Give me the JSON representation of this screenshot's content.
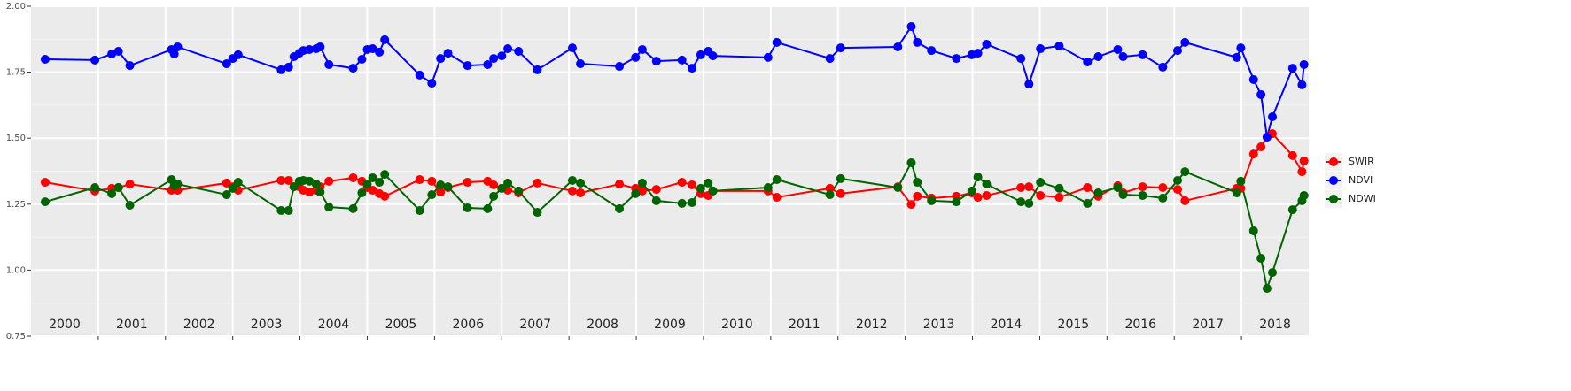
{
  "chart_data": {
    "type": "line",
    "x": [
      2000.21,
      2000.95,
      2001.2,
      2001.3,
      2001.47,
      2002.09,
      2002.13,
      2002.18,
      2002.91,
      2003.0,
      2003.08,
      2003.72,
      2003.83,
      2003.91,
      2003.99,
      2004.05,
      2004.14,
      2004.24,
      2004.3,
      2004.43,
      2004.79,
      2004.92,
      2005.0,
      2005.08,
      2005.18,
      2005.26,
      2005.78,
      2005.96,
      2006.09,
      2006.2,
      2006.49,
      2006.79,
      2006.88,
      2007.0,
      2007.09,
      2007.25,
      2007.53,
      2008.05,
      2008.17,
      2008.75,
      2008.99,
      2009.09,
      2009.3,
      2009.68,
      2009.83,
      2009.96,
      2010.07,
      2010.14,
      2010.96,
      2011.09,
      2011.88,
      2012.04,
      2012.89,
      2013.09,
      2013.18,
      2013.39,
      2013.76,
      2013.99,
      2014.08,
      2014.21,
      2014.72,
      2014.84,
      2015.01,
      2015.29,
      2015.71,
      2015.87,
      2016.16,
      2016.24,
      2016.53,
      2016.83,
      2017.05,
      2017.16,
      2017.93,
      2017.99,
      2018.18,
      2018.29,
      2018.38,
      2018.46,
      2018.76,
      2018.9,
      2018.93
    ],
    "series": [
      {
        "name": "SWIR",
        "color": "#ff0000",
        "values": [
          1.333,
          1.3,
          1.31,
          1.313,
          1.326,
          1.303,
          1.31,
          1.303,
          1.33,
          1.316,
          1.303,
          1.34,
          1.34,
          1.316,
          1.316,
          1.303,
          1.296,
          1.303,
          1.316,
          1.337,
          1.35,
          1.337,
          1.313,
          1.303,
          1.29,
          1.28,
          1.343,
          1.337,
          1.296,
          1.313,
          1.333,
          1.337,
          1.323,
          1.31,
          1.303,
          1.293,
          1.33,
          1.3,
          1.293,
          1.326,
          1.31,
          1.3,
          1.306,
          1.333,
          1.323,
          1.29,
          1.283,
          1.3,
          1.3,
          1.276,
          1.31,
          1.29,
          1.316,
          1.249,
          1.28,
          1.273,
          1.28,
          1.293,
          1.276,
          1.283,
          1.313,
          1.316,
          1.283,
          1.276,
          1.313,
          1.28,
          1.32,
          1.293,
          1.316,
          1.313,
          1.306,
          1.263,
          1.31,
          1.31,
          1.44,
          1.467,
          1.504,
          1.517,
          1.434,
          1.373,
          1.414
        ]
      },
      {
        "name": "NDVI",
        "color": "#0000ff",
        "values": [
          1.799,
          1.796,
          1.819,
          1.829,
          1.775,
          1.836,
          1.819,
          1.846,
          1.782,
          1.802,
          1.816,
          1.759,
          1.769,
          1.809,
          1.822,
          1.832,
          1.836,
          1.839,
          1.846,
          1.779,
          1.765,
          1.799,
          1.836,
          1.839,
          1.826,
          1.873,
          1.739,
          1.708,
          1.802,
          1.822,
          1.775,
          1.779,
          1.802,
          1.812,
          1.839,
          1.829,
          1.759,
          1.842,
          1.782,
          1.772,
          1.806,
          1.836,
          1.792,
          1.796,
          1.765,
          1.816,
          1.829,
          1.812,
          1.806,
          1.863,
          1.802,
          1.842,
          1.846,
          1.923,
          1.863,
          1.832,
          1.802,
          1.816,
          1.822,
          1.856,
          1.802,
          1.705,
          1.839,
          1.849,
          1.789,
          1.809,
          1.836,
          1.809,
          1.816,
          1.769,
          1.832,
          1.863,
          1.806,
          1.842,
          1.722,
          1.665,
          1.504,
          1.581,
          1.765,
          1.702,
          1.779
        ]
      },
      {
        "name": "NDWI",
        "color": "#006400",
        "values": [
          1.259,
          1.313,
          1.29,
          1.313,
          1.246,
          1.343,
          1.32,
          1.326,
          1.286,
          1.31,
          1.333,
          1.226,
          1.226,
          1.316,
          1.337,
          1.34,
          1.337,
          1.326,
          1.296,
          1.239,
          1.233,
          1.293,
          1.326,
          1.35,
          1.333,
          1.363,
          1.226,
          1.286,
          1.323,
          1.316,
          1.236,
          1.233,
          1.28,
          1.31,
          1.33,
          1.3,
          1.219,
          1.34,
          1.33,
          1.233,
          1.29,
          1.33,
          1.263,
          1.253,
          1.256,
          1.31,
          1.33,
          1.3,
          1.313,
          1.343,
          1.286,
          1.347,
          1.313,
          1.407,
          1.333,
          1.263,
          1.259,
          1.3,
          1.353,
          1.326,
          1.259,
          1.253,
          1.333,
          1.31,
          1.253,
          1.293,
          1.313,
          1.286,
          1.283,
          1.273,
          1.34,
          1.373,
          1.293,
          1.337,
          1.149,
          1.045,
          0.931,
          0.991,
          1.229,
          1.263,
          1.283
        ]
      }
    ],
    "xlim": [
      2000,
      2019
    ],
    "xticks": [
      2001,
      2002,
      2003,
      2004,
      2005,
      2006,
      2007,
      2008,
      2009,
      2010,
      2011,
      2012,
      2013,
      2014,
      2015,
      2016,
      2017,
      2018
    ],
    "ylim": [
      0.75,
      2.0
    ],
    "yticks": [
      {
        "value": 0.75,
        "label": "0.75"
      },
      {
        "value": 1.0,
        "label": "1.00"
      },
      {
        "value": 1.25,
        "label": "1.25"
      },
      {
        "value": 1.5,
        "label": "1.50"
      },
      {
        "value": 1.75,
        "label": "1.75"
      },
      {
        "value": 2.0,
        "label": "2.00"
      }
    ],
    "annotations": [
      {
        "label": "2000",
        "x": 2000.5
      },
      {
        "label": "2001",
        "x": 2001.5
      },
      {
        "label": "2002",
        "x": 2002.5
      },
      {
        "label": "2003",
        "x": 2003.5
      },
      {
        "label": "2004",
        "x": 2004.5
      },
      {
        "label": "2005",
        "x": 2005.5
      },
      {
        "label": "2006",
        "x": 2006.5
      },
      {
        "label": "2007",
        "x": 2007.5
      },
      {
        "label": "2008",
        "x": 2008.5
      },
      {
        "label": "2009",
        "x": 2009.5
      },
      {
        "label": "2010",
        "x": 2010.5
      },
      {
        "label": "2011",
        "x": 2011.5
      },
      {
        "label": "2012",
        "x": 2012.5
      },
      {
        "label": "2013",
        "x": 2013.5
      },
      {
        "label": "2014",
        "x": 2014.5
      },
      {
        "label": "2015",
        "x": 2015.5
      },
      {
        "label": "2016",
        "x": 2016.5
      },
      {
        "label": "2017",
        "x": 2017.5
      },
      {
        "label": "2018",
        "x": 2018.5
      }
    ],
    "grid": true,
    "legend": "right"
  }
}
